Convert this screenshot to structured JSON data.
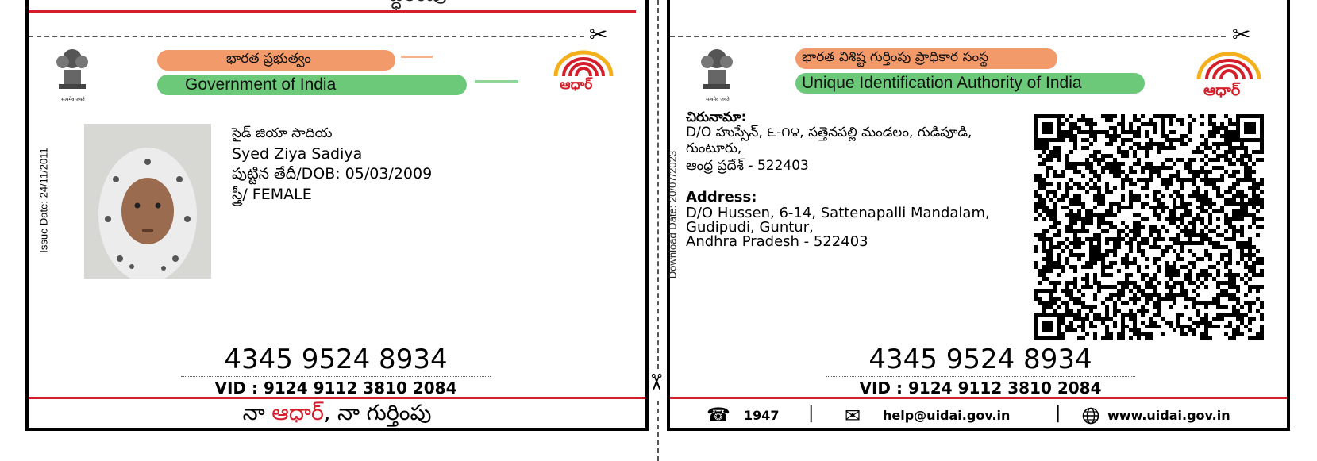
{
  "top_strip_fragment": "ద్ధరింపు",
  "left_card": {
    "header_te": "భారత ప్రభుత్వం",
    "header_en": "Government of India",
    "emblem_caption": "सत्यमेव जयते",
    "aadhaar_logo_text": "ఆధార్",
    "issue_date": "Issue Date: 24/11/2011",
    "name_te": "సైడ్ జియా సాదియ",
    "name_en": "Syed Ziya Sadiya",
    "dob": "పుట్టిన తేదీ/DOB: 05/03/2009",
    "gender": "స్త్రీ/ FEMALE",
    "aadhaar_number": "4345 9524 8934",
    "vid": "VID : 9124 9112 3810 2084",
    "footer_part1": "నా ",
    "footer_part2": "ఆధార్",
    "footer_part3": ", నా గుర్తింపు",
    "colors": {
      "saffron": "#f39a6a",
      "green": "#6cc97a",
      "red": "#d41f2b"
    }
  },
  "right_card": {
    "header_te": "భారత విశిష్ట గుర్తింపు ప్రాధికార సంస్థ",
    "header_en": "Unique Identification Authority of India",
    "emblem_caption": "सत्यमेव जयते",
    "aadhaar_logo_text": "ఆధార్",
    "download_date": "Download Date: 20/07/2023",
    "address_te_label": "చిరునామా:",
    "address_te_lines": [
      "D/O హుస్సేన్, ౬-౧౪, సత్తెనపల్లి మండలం, గుడిపూడి,",
      "గుంటూరు,",
      "ఆంధ్ర ప్రదేశ్ - 522403"
    ],
    "address_en_label": "Address:",
    "address_en_lines": [
      "D/O Hussen, 6-14, Sattenapalli Mandalam,",
      "Gudipudi, Guntur,",
      "Andhra Pradesh - 522403"
    ],
    "aadhaar_number": "4345 9524 8934",
    "vid": "VID : 9124 9112 3810 2084",
    "phone": "1947",
    "email": "help@uidai.gov.in",
    "website": "www.uidai.gov.in",
    "separator": "|"
  }
}
